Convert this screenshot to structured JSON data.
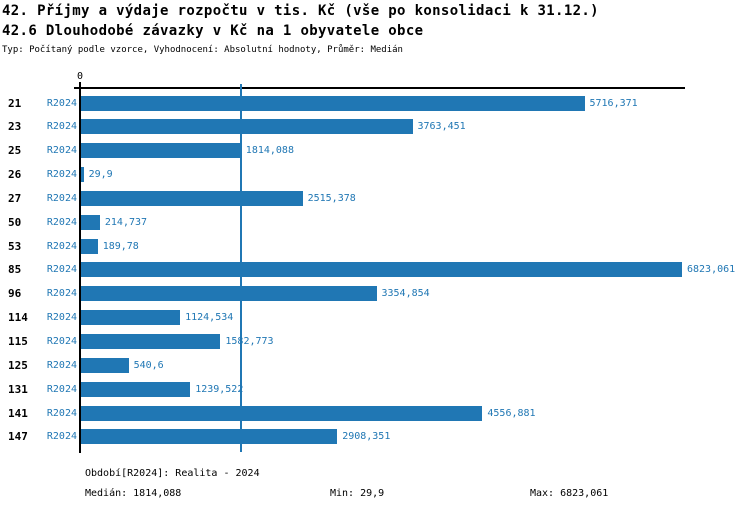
{
  "accent_color": "#2077b4",
  "header": {
    "title": "42. Příjmy a výdaje rozpočtu v tis. Kč (vše po konsolidaci k 31.12.)",
    "subtitle": "42.6 Dlouhodobé závazky v Kč na 1 obyvatele obce",
    "meta_line": "Typ: Počítaný podle vzorce, Vyhodnocení: Absolutní hodnoty, Průměr: Medián"
  },
  "axis": {
    "zero_label": "0"
  },
  "chart_data": {
    "type": "bar",
    "orientation": "horizontal",
    "title": "42.6 Dlouhodobé závazky v Kč na 1 obyvatele obce",
    "series_label": "R2024",
    "categories": [
      "21",
      "23",
      "25",
      "26",
      "27",
      "50",
      "53",
      "85",
      "96",
      "114",
      "115",
      "125",
      "131",
      "141",
      "147"
    ],
    "values": [
      5716.371,
      3763.451,
      1814.088,
      29.9,
      2515.378,
      214.737,
      189.78,
      6823.061,
      3354.854,
      1124.534,
      1582.773,
      540.6,
      1239.522,
      4556.881,
      2908.351
    ],
    "value_labels": [
      "5716,371",
      "3763,451",
      "1814,088",
      "29,9",
      "2515,378",
      "214,737",
      "189,78",
      "6823,061",
      "3354,854",
      "1124,534",
      "1582,773",
      "540,6",
      "1239,522",
      "4556,881",
      "2908,351"
    ],
    "xlim": [
      0,
      6823.061
    ],
    "median_line_value": 1814.088,
    "grid": "single median gridline",
    "legend_position": "none",
    "bar_color": "#2077b4",
    "label_color": "#2077b4"
  },
  "footer": {
    "period_line": "Období[R2024]: Realita - 2024",
    "median": "Medián: 1814,088",
    "min": "Min: 29,9",
    "max": "Max: 6823,061"
  }
}
